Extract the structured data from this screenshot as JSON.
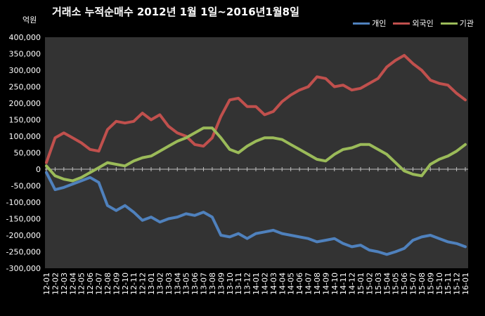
{
  "chart_data": {
    "type": "line",
    "title": "거래소 누적순매수 2012년 1월 1일~2016년1월8일",
    "unit_label": "억원",
    "ylim": [
      -300000,
      400000
    ],
    "y_ticks": [
      "400,000",
      "350,000",
      "300,000",
      "250,000",
      "200,000",
      "150,000",
      "100,000",
      "50,000",
      "0",
      "-50,000",
      "-100,000",
      "-150,000",
      "-200,000",
      "-250,000",
      "-300,000"
    ],
    "y_tick_values": [
      400000,
      350000,
      300000,
      250000,
      200000,
      150000,
      100000,
      50000,
      0,
      -50000,
      -100000,
      -150000,
      -200000,
      -250000,
      -300000
    ],
    "categories": [
      "12-01",
      "12-02",
      "12-03",
      "12-04",
      "12-05",
      "12-06",
      "12-07",
      "12-08",
      "12-09",
      "12-10",
      "12-11",
      "12-12",
      "13-01",
      "13-02",
      "13-03",
      "13-04",
      "13-05",
      "13-06",
      "13-07",
      "13-08",
      "13-09",
      "13-10",
      "13-11",
      "13-12",
      "14-01",
      "14-02",
      "14-03",
      "14-04",
      "14-05",
      "14-06",
      "14-07",
      "14-08",
      "14-09",
      "14-10",
      "14-11",
      "14-12",
      "15-01",
      "15-02",
      "15-03",
      "15-04",
      "15-05",
      "15-06",
      "15-07",
      "15-08",
      "15-09",
      "15-10",
      "15-11",
      "15-12",
      "16-01"
    ],
    "grid": false,
    "legend_position": "top-right",
    "colors": {
      "individual": "#4f81bd",
      "foreign": "#c0504d",
      "institution": "#9bbb59"
    },
    "series": [
      {
        "name": "개인",
        "key": "individual",
        "values": [
          -10000,
          -62000,
          -55000,
          -45000,
          -35000,
          -25000,
          -40000,
          -110000,
          -125000,
          -110000,
          -130000,
          -155000,
          -145000,
          -160000,
          -150000,
          -145000,
          -135000,
          -140000,
          -130000,
          -145000,
          -200000,
          -205000,
          -195000,
          -210000,
          -195000,
          -190000,
          -185000,
          -195000,
          -200000,
          -205000,
          -210000,
          -220000,
          -215000,
          -210000,
          -225000,
          -235000,
          -230000,
          -245000,
          -250000,
          -258000,
          -250000,
          -240000,
          -215000,
          -205000,
          -200000,
          -210000,
          -220000,
          -225000,
          -235000
        ]
      },
      {
        "name": "외국인",
        "key": "foreign",
        "values": [
          20000,
          95000,
          110000,
          95000,
          80000,
          60000,
          55000,
          120000,
          145000,
          140000,
          145000,
          170000,
          150000,
          165000,
          130000,
          110000,
          100000,
          75000,
          70000,
          95000,
          160000,
          210000,
          215000,
          190000,
          190000,
          165000,
          175000,
          205000,
          225000,
          240000,
          250000,
          280000,
          275000,
          250000,
          255000,
          240000,
          245000,
          260000,
          275000,
          310000,
          330000,
          345000,
          320000,
          300000,
          270000,
          260000,
          255000,
          230000,
          210000
        ]
      },
      {
        "name": "기관",
        "key": "institution",
        "values": [
          10000,
          -20000,
          -30000,
          -35000,
          -25000,
          -10000,
          5000,
          20000,
          15000,
          10000,
          25000,
          35000,
          40000,
          55000,
          70000,
          85000,
          95000,
          110000,
          125000,
          125000,
          95000,
          60000,
          50000,
          70000,
          85000,
          95000,
          95000,
          90000,
          75000,
          60000,
          45000,
          30000,
          25000,
          45000,
          60000,
          65000,
          75000,
          75000,
          60000,
          45000,
          20000,
          -5000,
          -15000,
          -20000,
          15000,
          30000,
          40000,
          55000,
          75000
        ]
      }
    ]
  }
}
